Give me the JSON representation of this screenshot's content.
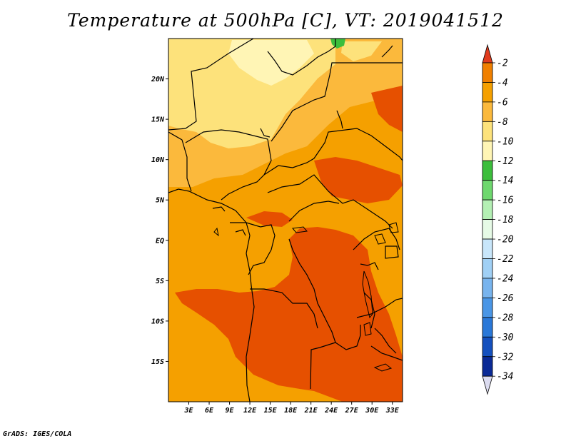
{
  "title": "Temperature at 500hPa [C], VT: 2019041512",
  "credit": "GrADS: IGES/COLA",
  "map": {
    "lon_range": [
      0,
      34.5
    ],
    "lat_range": [
      -20,
      25
    ],
    "lon_ticks": [
      {
        "value": 3,
        "label": "3E"
      },
      {
        "value": 6,
        "label": "6E"
      },
      {
        "value": 9,
        "label": "9E"
      },
      {
        "value": 12,
        "label": "12E"
      },
      {
        "value": 15,
        "label": "15E"
      },
      {
        "value": 18,
        "label": "18E"
      },
      {
        "value": 21,
        "label": "21E"
      },
      {
        "value": 24,
        "label": "24E"
      },
      {
        "value": 27,
        "label": "27E"
      },
      {
        "value": 30,
        "label": "30E"
      },
      {
        "value": 33,
        "label": "33E"
      }
    ],
    "lat_ticks": [
      {
        "value": 20,
        "label": "20N"
      },
      {
        "value": 15,
        "label": "15N"
      },
      {
        "value": 10,
        "label": "10N"
      },
      {
        "value": 5,
        "label": "5N"
      },
      {
        "value": 0,
        "label": "EQ"
      },
      {
        "value": -5,
        "label": "5S"
      },
      {
        "value": -10,
        "label": "10S"
      },
      {
        "value": -15,
        "label": "15S"
      }
    ]
  },
  "colorbar": {
    "levels": [
      "-2",
      "-4",
      "-6",
      "-8",
      "-10",
      "-12",
      "-14",
      "-16",
      "-18",
      "-20",
      "-22",
      "-24",
      "-26",
      "-28",
      "-30",
      "-32",
      "-34"
    ],
    "colors": [
      "#e65000",
      "#f08000",
      "#f5a000",
      "#fbb93c",
      "#fde27b",
      "#fff5b5",
      "#3cbe3c",
      "#6ed86e",
      "#b4f0b4",
      "#e6fae6",
      "#c8e6fa",
      "#a0d0f5",
      "#78b4ee",
      "#4a96e6",
      "#2a78d8",
      "#1450be",
      "#0a2a96",
      "#08116e"
    ],
    "top_arrow_color": "#e03c1e",
    "bottom_arrow_color": "#dcdcf0"
  }
}
